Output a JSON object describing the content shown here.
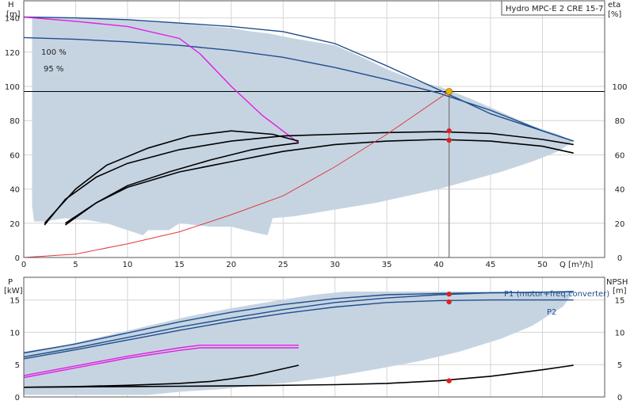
{
  "chart_data": [
    {
      "type": "line",
      "title": "Hydro MPC-E 2 CRE 15-7",
      "xlabel": "Q [m³/h]",
      "ylabel": "H",
      "ylabel_unit": "[m]",
      "y2label": "eta",
      "y2label_unit": "[%]",
      "xlim": [
        0,
        56
      ],
      "ylim": [
        0,
        150
      ],
      "x_ticks": [
        0,
        5,
        10,
        15,
        20,
        25,
        30,
        35,
        40,
        45,
        50
      ],
      "y_ticks": [
        0,
        20,
        40,
        60,
        80,
        100,
        120,
        140
      ],
      "y2_ticks": [
        0,
        20,
        40,
        60,
        80,
        100
      ],
      "grid": true,
      "speed_labels": [
        {
          "text": "100 %",
          "x": 2,
          "y": 143
        },
        {
          "text": "95 %",
          "x": 2,
          "y": 131
        }
      ],
      "operating_area": {
        "color": "#c6d4e2",
        "x": [
          0.8,
          3,
          5,
          8,
          10,
          12,
          13,
          14,
          15,
          18,
          20,
          22,
          23.5,
          26,
          28,
          30,
          33,
          35,
          38,
          40,
          43,
          46,
          49,
          51.5,
          53
        ],
        "y": [
          140.5,
          140,
          140,
          139.5,
          139,
          138.5,
          138,
          137.5,
          137,
          135,
          134,
          132,
          131,
          128,
          126,
          124,
          116,
          110,
          103,
          100,
          93,
          85,
          77,
          72,
          68
        ],
        "lower_x": [
          53,
          51.5,
          49,
          46,
          43,
          40,
          37,
          34,
          30,
          28,
          26,
          24,
          23.5,
          22,
          20,
          18,
          15,
          14,
          12,
          11.5,
          10,
          8,
          6,
          5,
          4,
          3,
          2,
          1,
          0.8
        ],
        "lower_y": [
          68,
          62,
          56,
          50,
          45,
          40,
          36,
          32,
          28,
          26,
          24,
          23,
          13,
          15,
          18,
          18,
          20,
          16,
          16,
          13,
          16,
          20,
          22,
          22,
          23,
          22,
          21,
          21,
          30
        ]
      },
      "series": [
        {
          "name": "100 %",
          "role": "head",
          "color": "#1f4e8c",
          "x": [
            0,
            5,
            10,
            15,
            20,
            25,
            30,
            35,
            40,
            45,
            50,
            53
          ],
          "y": [
            140.5,
            140,
            139,
            137,
            135,
            132,
            125,
            112,
            98,
            84,
            74,
            68
          ]
        },
        {
          "name": "95 %",
          "role": "head",
          "color": "#1f4e8c",
          "x": [
            0,
            5,
            10,
            15,
            20,
            25,
            30,
            35,
            40,
            45,
            50,
            53
          ],
          "y": [
            128.5,
            127.5,
            126,
            124,
            121,
            117,
            111,
            104,
            96,
            86,
            74,
            68
          ]
        },
        {
          "role": "head",
          "color": "#e020e0",
          "x": [
            0,
            5,
            10,
            15,
            17,
            20,
            23,
            26.5
          ],
          "y": [
            140.5,
            138,
            135,
            128,
            119,
            100,
            83,
            67
          ]
        },
        {
          "role": "eta",
          "color": "#000000",
          "x": [
            2,
            4,
            7,
            10,
            15,
            20,
            25,
            30,
            35,
            40,
            45,
            50,
            53
          ],
          "y": [
            19,
            34,
            47,
            55,
            63,
            68,
            71,
            72,
            73,
            73.5,
            72.5,
            69,
            66
          ]
        },
        {
          "role": "eta",
          "color": "#000000",
          "x": [
            4,
            7,
            10,
            15,
            20,
            25,
            30,
            35,
            40,
            45,
            50,
            53
          ],
          "y": [
            19,
            32,
            41,
            50,
            56,
            62,
            66,
            68,
            69,
            68,
            65,
            61
          ]
        },
        {
          "role": "eta",
          "color": "#000000",
          "x": [
            2,
            5,
            8,
            12,
            16,
            20,
            24,
            26.5
          ],
          "y": [
            20,
            40,
            54,
            64,
            71,
            74,
            72,
            68
          ]
        },
        {
          "role": "eta",
          "color": "#000000",
          "x": [
            4,
            7,
            10,
            14,
            18,
            22,
            24,
            26.5
          ],
          "y": [
            20,
            32,
            42,
            50,
            57,
            63,
            65,
            67
          ]
        },
        {
          "role": "system",
          "color": "#e03a3a",
          "x": [
            0,
            5,
            10,
            15,
            20,
            25,
            30,
            35,
            41
          ],
          "y": [
            0,
            2,
            8,
            15,
            25,
            36,
            53,
            72,
            97
          ]
        }
      ],
      "reference_line": {
        "y": 97,
        "color": "#000000"
      },
      "operating_point": {
        "x": 41,
        "y": 97,
        "color": "#e8b400"
      },
      "markers": [
        {
          "x": 41,
          "y": 74,
          "color": "#e02020"
        },
        {
          "x": 41,
          "y": 68.5,
          "color": "#e02020"
        }
      ]
    },
    {
      "type": "line",
      "xlabel": "",
      "ylabel": "P",
      "ylabel_unit": "[kW]",
      "y2label": "NPSH",
      "y2label_unit": "[m]",
      "xlim": [
        0,
        56
      ],
      "ylim": [
        0,
        18.5
      ],
      "y_ticks": [
        0,
        5,
        10,
        15
      ],
      "y2_ticks": [
        0,
        5,
        10,
        15
      ],
      "grid": true,
      "operating_area": {
        "color": "#c6d4e2",
        "x": [
          0,
          4,
          8,
          12,
          16,
          20,
          24,
          28,
          31,
          35,
          40,
          45,
          50,
          53
        ],
        "y": [
          7,
          8,
          9.5,
          11,
          12.5,
          13.7,
          14.8,
          15.8,
          16.3,
          16.3,
          16.3,
          16.3,
          16.3,
          16.3
        ],
        "lower_x": [
          53,
          52,
          49,
          46,
          42,
          38,
          34,
          30,
          26,
          22,
          19,
          15,
          12,
          9,
          6,
          4,
          2,
          0
        ],
        "lower_y": [
          16.3,
          14,
          11,
          9,
          7,
          5.5,
          4.3,
          3.2,
          2.3,
          1.7,
          1.2,
          0.8,
          0.3,
          0.3,
          0.3,
          0.3,
          0.3,
          0.3
        ]
      },
      "series": [
        {
          "name": "P1 (motor+freq.converter)",
          "role": "power",
          "color": "#1f4e8c",
          "x": [
            0,
            5,
            10,
            15,
            20,
            25,
            30,
            35,
            40,
            45,
            50,
            53
          ],
          "y": [
            6.2,
            7.6,
            9.2,
            10.8,
            12.2,
            13.5,
            14.6,
            15.3,
            15.8,
            16.1,
            16.2,
            16.3
          ]
        },
        {
          "name": "P2",
          "role": "power",
          "color": "#1f4e8c",
          "x": [
            0,
            5,
            10,
            15,
            20,
            25,
            30,
            35,
            40,
            45,
            50,
            53
          ],
          "y": [
            5.9,
            7.3,
            8.8,
            10.3,
            11.7,
            12.9,
            13.9,
            14.6,
            14.9,
            15.0,
            15.0,
            15.0
          ]
        },
        {
          "role": "power",
          "color": "#1f4e8c",
          "x": [
            0,
            5,
            10,
            15,
            20,
            25,
            30,
            35,
            40,
            45,
            50,
            53
          ],
          "y": [
            6.8,
            8.2,
            9.9,
            11.6,
            13.1,
            14.3,
            15.2,
            15.8,
            16.0,
            16.1,
            16.2,
            16.3
          ]
        },
        {
          "role": "power",
          "color": "#e020e0",
          "x": [
            0,
            5,
            10,
            15,
            17,
            20,
            26.5
          ],
          "y": [
            3.3,
            4.8,
            6.3,
            7.6,
            8.0,
            8.0,
            8.0
          ]
        },
        {
          "role": "power",
          "color": "#e020e0",
          "x": [
            0,
            5,
            10,
            15,
            17,
            20,
            26.5
          ],
          "y": [
            3.0,
            4.5,
            6.0,
            7.2,
            7.6,
            7.6,
            7.6
          ]
        },
        {
          "role": "npsh",
          "color": "#000000",
          "x": [
            0,
            5,
            10,
            15,
            20,
            25,
            30,
            35,
            40,
            45,
            50,
            53
          ],
          "y": [
            1.5,
            1.55,
            1.6,
            1.65,
            1.7,
            1.8,
            1.9,
            2.1,
            2.5,
            3.2,
            4.2,
            4.9
          ]
        },
        {
          "role": "npsh",
          "color": "#000000",
          "x": [
            0,
            5,
            10,
            15,
            18,
            20,
            22,
            24,
            26.5
          ],
          "y": [
            1.5,
            1.6,
            1.8,
            2.1,
            2.4,
            2.8,
            3.3,
            4.0,
            4.9
          ]
        }
      ],
      "legend_labels": [
        "P1 (motor+freq.converter)",
        "P2"
      ],
      "markers": [
        {
          "x": 41,
          "y": 15.9,
          "color": "#e02020"
        },
        {
          "x": 41,
          "y": 14.7,
          "color": "#e02020"
        },
        {
          "x": 41,
          "y": 2.5,
          "color": "#e02020"
        }
      ]
    }
  ]
}
